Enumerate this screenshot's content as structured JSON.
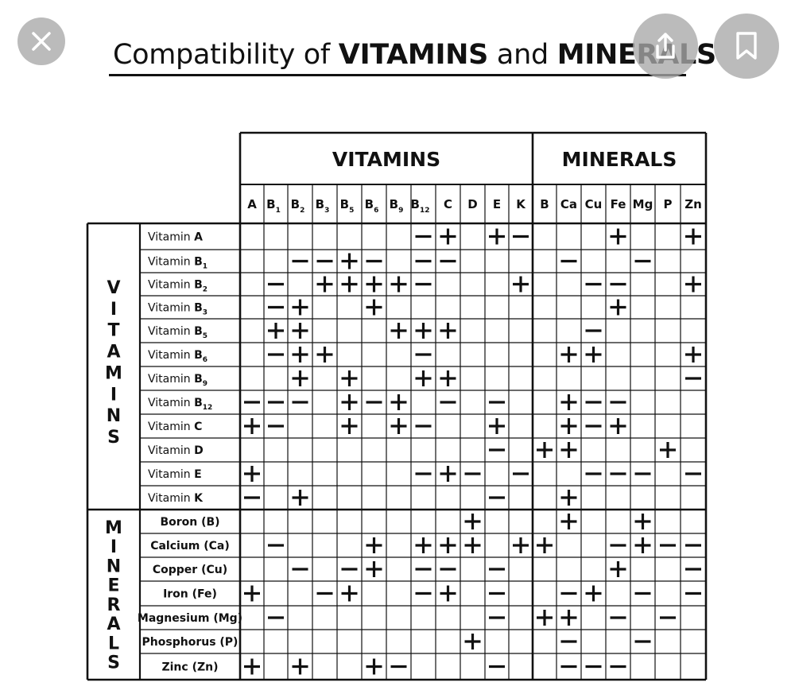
{
  "title": {
    "part1": "Compatibility of ",
    "part2": "VITAMINS",
    "part3": " and ",
    "part4": "MINERALS"
  },
  "controls": {
    "close_icon": "close-icon",
    "share_icon": "share-icon",
    "bookmark_icon": "bookmark-icon"
  },
  "table": {
    "group_vitamins": "VITAMINS",
    "group_minerals": "MINERALS",
    "side_vitamins": "VITAMINS",
    "side_minerals": "MINERALS",
    "columns": [
      {
        "base": "A",
        "sub": ""
      },
      {
        "base": "B",
        "sub": "1"
      },
      {
        "base": "B",
        "sub": "2"
      },
      {
        "base": "B",
        "sub": "3"
      },
      {
        "base": "B",
        "sub": "5"
      },
      {
        "base": "B",
        "sub": "6"
      },
      {
        "base": "B",
        "sub": "9"
      },
      {
        "base": "B",
        "sub": "12"
      },
      {
        "base": "C",
        "sub": ""
      },
      {
        "base": "D",
        "sub": ""
      },
      {
        "base": "E",
        "sub": ""
      },
      {
        "base": "K",
        "sub": ""
      },
      {
        "base": "B",
        "sub": ""
      },
      {
        "base": "Ca",
        "sub": ""
      },
      {
        "base": "Cu",
        "sub": ""
      },
      {
        "base": "Fe",
        "sub": ""
      },
      {
        "base": "Mg",
        "sub": ""
      },
      {
        "base": "P",
        "sub": ""
      },
      {
        "base": "Zn",
        "sub": ""
      }
    ],
    "rows": [
      {
        "prefix": "Vitamin ",
        "base": "A",
        "sub": "",
        "cells": ".......-+.+-...+..+"
      },
      {
        "prefix": "Vitamin ",
        "base": "B",
        "sub": "1",
        "cells": "..--+-.--....-..-.."
      },
      {
        "prefix": "Vitamin ",
        "base": "B",
        "sub": "2",
        "cells": ".-.++++-...+..--..+"
      },
      {
        "prefix": "Vitamin ",
        "base": "B",
        "sub": "3",
        "cells": ".-+..+.........+..."
      },
      {
        "prefix": "Vitamin ",
        "base": "B",
        "sub": "5",
        "cells": ".++...+++.....-...."
      },
      {
        "prefix": "Vitamin ",
        "base": "B",
        "sub": "6",
        "cells": ".-++...-.....++...+"
      },
      {
        "prefix": "Vitamin ",
        "base": "B",
        "sub": "9",
        "cells": "..+.+..++.........-"
      },
      {
        "prefix": "Vitamin ",
        "base": "B",
        "sub": "12",
        "cells": "---.+-+.-.-..+--..."
      },
      {
        "prefix": "Vitamin ",
        "base": "C",
        "sub": "",
        "cells": "+-..+.+-..+..+-+..."
      },
      {
        "prefix": "Vitamin ",
        "base": "D",
        "sub": "",
        "cells": "..........-.++...+."
      },
      {
        "prefix": "Vitamin ",
        "base": "E",
        "sub": "",
        "cells": "+......-+-.-..---.-"
      },
      {
        "prefix": "Vitamin ",
        "base": "K",
        "sub": "",
        "cells": "-.+.......-..+....."
      },
      {
        "prefix": "",
        "base": "Boron (B)",
        "sub": "",
        "cells": ".........+...+..+.."
      },
      {
        "prefix": "",
        "base": "Calcium (Ca)",
        "sub": "",
        "cells": ".-...+.+++.++..-+--"
      },
      {
        "prefix": "",
        "base": "Copper (Cu)",
        "sub": "",
        "cells": "..-.-+.--.-....+..-"
      },
      {
        "prefix": "",
        "base": "Iron (Fe)",
        "sub": "",
        "cells": "+..-+..-+.-..-+.-.-"
      },
      {
        "prefix": "",
        "base": "Magnesium (Mg)",
        "sub": "",
        "cells": ".-........-.++.-.-."
      },
      {
        "prefix": "",
        "base": "Phosphorus (P)",
        "sub": "",
        "cells": ".........+...-..-.."
      },
      {
        "prefix": "",
        "base": "Zinc (Zn)",
        "sub": "",
        "cells": "+.+..+-...-..---..."
      }
    ]
  }
}
